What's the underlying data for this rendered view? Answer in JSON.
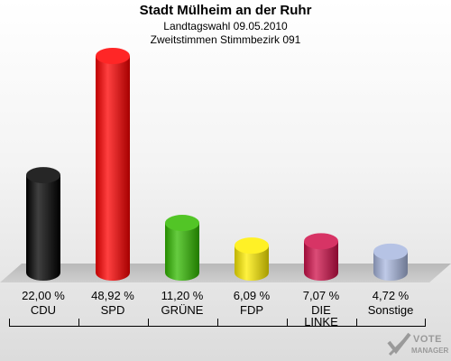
{
  "header": {
    "title": "Stadt Mülheim an der Ruhr",
    "subtitle1": "Landtagswahl 09.05.2010",
    "subtitle2": "Zweitstimmen Stimmbezirk 091"
  },
  "labels": {
    "pct": [
      "22,00 %",
      "48,92 %",
      "11,20 %",
      "6,09 %",
      "7,07 %",
      "4,72 %"
    ],
    "cat": [
      "CDU",
      "SPD",
      "GRÜNE",
      "FDP",
      "DIE\nLINKE",
      "Sonstige"
    ]
  },
  "logo": {
    "line1": "VOTE",
    "line2": "MANAGER"
  },
  "chart_data": {
    "type": "bar",
    "title": "Stadt Mülheim an der Ruhr",
    "subtitle": "Landtagswahl 09.05.2010 — Zweitstimmen Stimmbezirk 091",
    "categories": [
      "CDU",
      "SPD",
      "GRÜNE",
      "FDP",
      "DIE LINKE",
      "Sonstige"
    ],
    "values": [
      22.0,
      48.92,
      11.2,
      6.09,
      7.07,
      4.72
    ],
    "value_labels": [
      "22,00 %",
      "48,92 %",
      "11,20 %",
      "6,09 %",
      "7,07 %",
      "4,72 %"
    ],
    "colors": [
      "#000000",
      "#ff0000",
      "#33bb00",
      "#ffee00",
      "#d0104a",
      "#a9b8e0"
    ],
    "ylim": [
      0,
      50
    ],
    "xlabel": "",
    "ylabel": "",
    "grid": false,
    "legend": "none"
  }
}
